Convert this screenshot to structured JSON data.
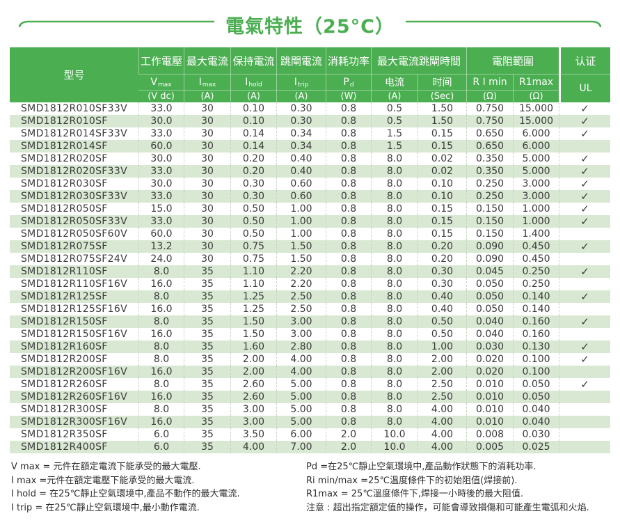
{
  "title": {
    "text": "電氣特性（25°C）"
  },
  "colors": {
    "header_green": "#4bae51",
    "stripe_green": "#d9e8d2",
    "title_green": "#4bae51",
    "text_dark": "#3a3a3a"
  },
  "table": {
    "header": {
      "model": "型号",
      "groups": [
        {
          "label": "工作電壓",
          "sym": "V",
          "sub": "max",
          "unit": "(V dc)"
        },
        {
          "label": "最大電流",
          "sym": "I",
          "sub": "max",
          "unit": "(A)"
        },
        {
          "label": "保持電流",
          "sym": "I",
          "sub": "hold",
          "unit": "(A)"
        },
        {
          "label": "跳閘電流",
          "sym": "I",
          "sub": "trip",
          "unit": "(A)"
        },
        {
          "label": "消耗功率",
          "sym": "P",
          "sub": "d",
          "unit": "(W)"
        }
      ],
      "trip_group": {
        "label": "最大電流跳閘時間",
        "cols": [
          {
            "name": "电流",
            "unit": "(A)"
          },
          {
            "name": "时间",
            "unit": "(Sec)"
          }
        ]
      },
      "res_group": {
        "label": "電阻範圍",
        "cols": [
          {
            "name": "R I min",
            "unit": "(Ω)"
          },
          {
            "name": "R1max",
            "unit": "(Ω)"
          }
        ]
      },
      "cert": {
        "label": "认证",
        "sub": "UL"
      }
    },
    "check_mark": "✓",
    "rows": [
      [
        "SMD1812R010SF33V",
        "33.0",
        "30",
        "0.10",
        "0.30",
        "0.8",
        "0.5",
        "1.50",
        "0.750",
        "15.000",
        "✓"
      ],
      [
        "SMD1812R010SF",
        "30.0",
        "30",
        "0.10",
        "0.30",
        "0.8",
        "0.5",
        "1.50",
        "0.750",
        "15.000",
        "✓"
      ],
      [
        "SMD1812R014SF33V",
        "33.0",
        "30",
        "0.14",
        "0.34",
        "0.8",
        "1.5",
        "0.15",
        "0.650",
        "6.000",
        "✓"
      ],
      [
        "SMD1812R014SF",
        "60.0",
        "30",
        "0.14",
        "0.34",
        "0.8",
        "1.5",
        "0.15",
        "0.650",
        "6.000",
        ""
      ],
      [
        "SMD1812R020SF",
        "30.0",
        "30",
        "0.20",
        "0.40",
        "0.8",
        "8.0",
        "0.02",
        "0.350",
        "5.000",
        "✓"
      ],
      [
        "SMD1812R020SF33V",
        "33.0",
        "30",
        "0.20",
        "0.40",
        "0.8",
        "8.0",
        "0.02",
        "0.350",
        "5.000",
        "✓"
      ],
      [
        "SMD1812R030SF",
        "30.0",
        "30",
        "0.30",
        "0.60",
        "0.8",
        "8.0",
        "0.10",
        "0.250",
        "3.000",
        "✓"
      ],
      [
        "SMD1812R030SF33V",
        "33.0",
        "30",
        "0.30",
        "0.60",
        "0.8",
        "8.0",
        "0.10",
        "0.250",
        "3.000",
        "✓"
      ],
      [
        "SMD1812R050SF",
        "15.0",
        "30",
        "0.50",
        "1.00",
        "0.8",
        "8.0",
        "0.15",
        "0.150",
        "1.000",
        "✓"
      ],
      [
        "SMD1812R050SF33V",
        "33.0",
        "30",
        "0.50",
        "1.00",
        "0.8",
        "8.0",
        "0.15",
        "0.150",
        "1.000",
        "✓"
      ],
      [
        "SMD1812R050SF60V",
        "60.0",
        "30",
        "0.50",
        "1.00",
        "0.8",
        "8.0",
        "0.15",
        "0.150",
        "1.400",
        ""
      ],
      [
        "SMD1812R075SF",
        "13.2",
        "30",
        "0.75",
        "1.50",
        "0.8",
        "8.0",
        "0.20",
        "0.090",
        "0.450",
        "✓"
      ],
      [
        "SMD1812R075SF24V",
        "24.0",
        "30",
        "0.75",
        "1.50",
        "0.8",
        "8.0",
        "0.20",
        "0.090",
        "0.450",
        ""
      ],
      [
        "SMD1812R110SF",
        "8.0",
        "35",
        "1.10",
        "2.20",
        "0.8",
        "8.0",
        "0.30",
        "0.045",
        "0.250",
        "✓"
      ],
      [
        "SMD1812R110SF16V",
        "16.0",
        "35",
        "1.10",
        "2.20",
        "0.8",
        "8.0",
        "0.30",
        "0.050",
        "0.250",
        ""
      ],
      [
        "SMD1812R125SF",
        "8.0",
        "35",
        "1.25",
        "2.50",
        "0.8",
        "8.0",
        "0.40",
        "0.050",
        "0.140",
        "✓"
      ],
      [
        "SMD1812R125SF16V",
        "16.0",
        "35",
        "1.25",
        "2.50",
        "0.8",
        "8.0",
        "0.40",
        "0.050",
        "0.140",
        ""
      ],
      [
        "SMD1812R150SF",
        "8.0",
        "35",
        "1.50",
        "3.00",
        "0.8",
        "8.0",
        "0.50",
        "0.040",
        "0.160",
        "✓"
      ],
      [
        "SMD1812R150SF16V",
        "16.0",
        "35",
        "1.50",
        "3.00",
        "0.8",
        "8.0",
        "0.50",
        "0.040",
        "0.160",
        ""
      ],
      [
        "SMD1812R160SF",
        "8.0",
        "35",
        "1.60",
        "2.80",
        "0.8",
        "8.0",
        "1.00",
        "0.030",
        "0.130",
        "✓"
      ],
      [
        "SMD1812R200SF",
        "8.0",
        "35",
        "2.00",
        "4.00",
        "0.8",
        "8.0",
        "2.00",
        "0.020",
        "0.100",
        "✓"
      ],
      [
        "SMD1812R200SF16V",
        "16.0",
        "35",
        "2.00",
        "4.00",
        "0.8",
        "8.0",
        "2.00",
        "0.020",
        "0.100",
        ""
      ],
      [
        "SMD1812R260SF",
        "8.0",
        "35",
        "2.60",
        "5.00",
        "0.8",
        "8.0",
        "2.50",
        "0.010",
        "0.050",
        "✓"
      ],
      [
        "SMD1812R260SF16V",
        "16.0",
        "35",
        "2.60",
        "5.00",
        "0.8",
        "8.0",
        "2.50",
        "0.010",
        "0.050",
        ""
      ],
      [
        "SMD1812R300SF",
        "8.0",
        "35",
        "3.00",
        "5.00",
        "0.8",
        "8.0",
        "4.00",
        "0.010",
        "0.040",
        ""
      ],
      [
        "SMD1812R300SF16V",
        "16.0",
        "35",
        "3.00",
        "5.00",
        "0.8",
        "8.0",
        "4.00",
        "0.010",
        "0.040",
        ""
      ],
      [
        "SMD1812R350SF",
        "6.0",
        "35",
        "3.50",
        "6.00",
        "2.0",
        "10.0",
        "4.00",
        "0.008",
        "0.030",
        ""
      ],
      [
        "SMD1812R400SF",
        "6.0",
        "35",
        "4.00",
        "7.00",
        "2.0",
        "10.0",
        "4.00",
        "0.005",
        "0.025",
        ""
      ]
    ]
  },
  "footnotes": {
    "left": [
      "V max = 元件在額定電流下能承受的最大電壓.",
      "I max =元件在額定電壓下能承受的最大電流.",
      "I hold = 在25℃靜止空氣環境中,產品不動作的最大電流.",
      "I trip = 在25℃靜止空氣環境中,最小動作電流."
    ],
    "right": [
      "Pd =在25℃靜止空氣環境中,產品動作狀態下的消耗功率.",
      "Ri min/max  =25℃溫度條件下的初始阻值(焊接前).",
      "R1max  = 25℃溫度條件下,焊接一小時後的最大阻值.",
      "注意 : 超出指定額定值的操作，可能會導致損傷和可能產生電弧和火焰."
    ]
  }
}
